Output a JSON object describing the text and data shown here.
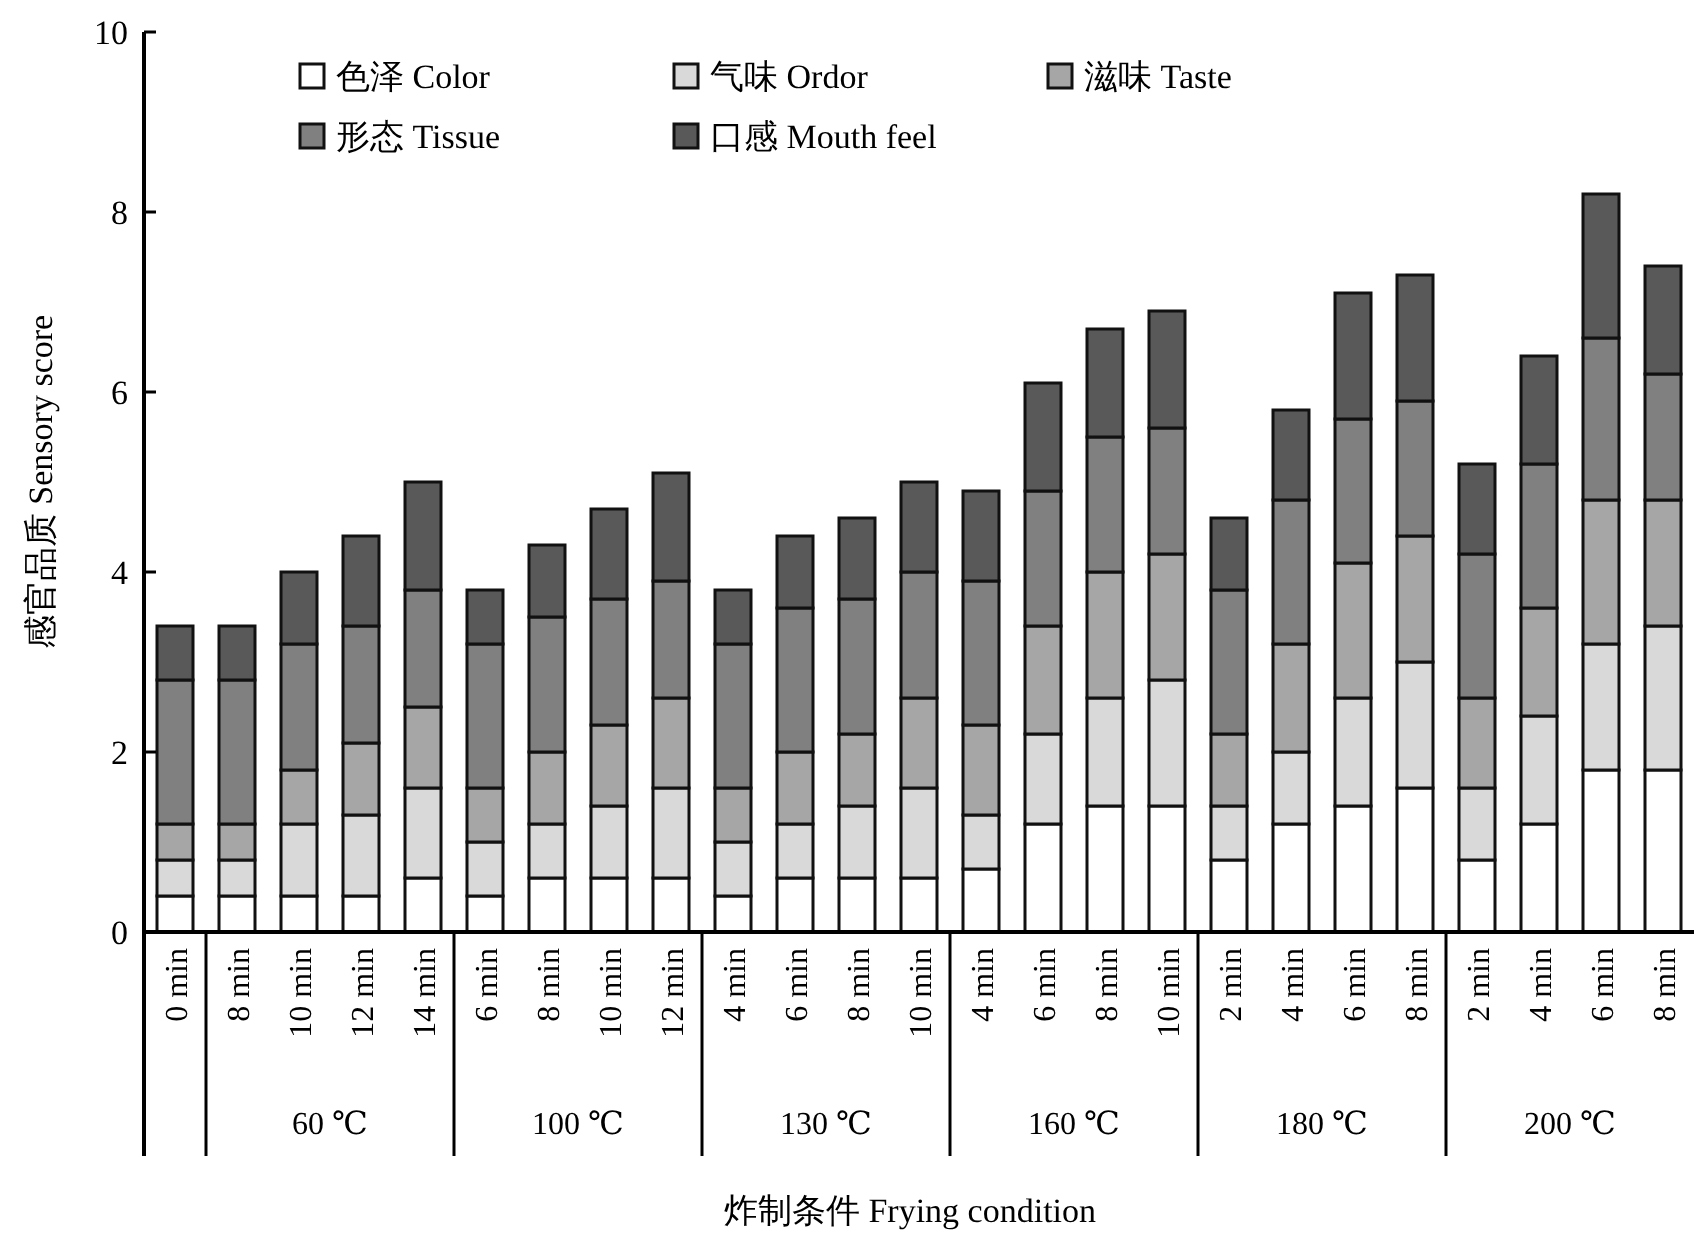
{
  "chart_data": {
    "type": "bar",
    "stacked": true,
    "xlabel": "炸制条件 Frying condition",
    "ylabel": "感官品质 Sensory score",
    "ylim": [
      0,
      10
    ],
    "yticks": [
      0,
      2,
      4,
      6,
      8,
      10
    ],
    "legend": "top",
    "categories": [
      "0 min",
      "8 min",
      "10 min",
      "12 min",
      "14 min",
      "6 min",
      "8 min",
      "10 min",
      "12 min",
      "4 min",
      "6 min",
      "8 min",
      "10 min",
      "4 min",
      "6 min",
      "8 min",
      "10 min",
      "2 min",
      "4 min",
      "6 min",
      "8 min",
      "2 min",
      "4 min",
      "6 min",
      "8 min"
    ],
    "annotations": [
      "60 ℃",
      "100 ℃",
      "130 ℃",
      "160 ℃",
      "180 ℃",
      "200 ℃"
    ],
    "series": [
      {
        "name": "色泽 Color",
        "color": "#ffffff",
        "values": [
          0.4,
          0.4,
          0.4,
          0.4,
          0.6,
          0.4,
          0.6,
          0.6,
          0.6,
          0.4,
          0.6,
          0.6,
          0.6,
          0.7,
          1.2,
          1.4,
          1.4,
          0.8,
          1.2,
          1.4,
          1.6,
          0.8,
          1.2,
          1.8,
          1.8
        ]
      },
      {
        "name": "气味 Ordor",
        "color": "#d9d9d9",
        "values": [
          0.4,
          0.4,
          0.8,
          0.9,
          1.0,
          0.6,
          0.6,
          0.8,
          1.0,
          0.6,
          0.6,
          0.8,
          1.0,
          0.6,
          1.0,
          1.2,
          1.4,
          0.6,
          0.8,
          1.2,
          1.4,
          0.8,
          1.2,
          1.4,
          1.6
        ]
      },
      {
        "name": "滋味 Taste",
        "color": "#a6a6a6",
        "values": [
          0.4,
          0.4,
          0.6,
          0.8,
          0.9,
          0.6,
          0.8,
          0.9,
          1.0,
          0.6,
          0.8,
          0.8,
          1.0,
          1.0,
          1.2,
          1.4,
          1.4,
          0.8,
          1.2,
          1.5,
          1.4,
          1.0,
          1.2,
          1.6,
          1.4
        ]
      },
      {
        "name": "形态 Tissue",
        "color": "#808080",
        "values": [
          1.6,
          1.6,
          1.4,
          1.3,
          1.3,
          1.6,
          1.5,
          1.4,
          1.3,
          1.6,
          1.6,
          1.5,
          1.4,
          1.6,
          1.5,
          1.5,
          1.4,
          1.6,
          1.6,
          1.6,
          1.5,
          1.6,
          1.6,
          1.8,
          1.4
        ]
      },
      {
        "name": "口感 Mouth feel",
        "color": "#595959",
        "values": [
          0.6,
          0.6,
          0.8,
          1.0,
          1.2,
          0.6,
          0.8,
          1.0,
          1.2,
          0.6,
          0.8,
          0.9,
          1.0,
          1.0,
          1.2,
          1.2,
          1.3,
          0.8,
          1.0,
          1.4,
          1.4,
          1.0,
          1.2,
          1.6,
          1.2
        ]
      }
    ]
  }
}
